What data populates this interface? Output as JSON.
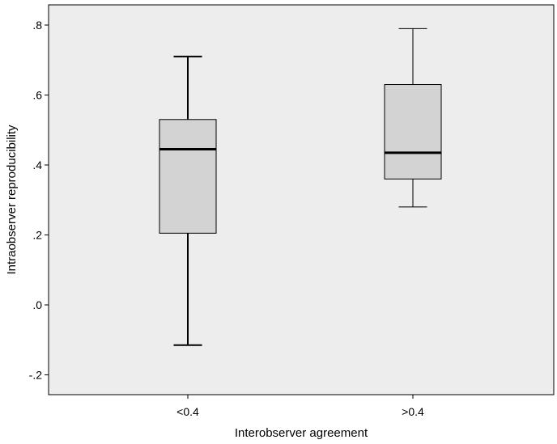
{
  "chart_data": {
    "type": "boxplot",
    "xlabel": "Interobserver agreement",
    "ylabel": "Intraobserver reproducibility",
    "ylim": [
      -0.25,
      0.85
    ],
    "yticks": [
      -0.2,
      0.0,
      0.2,
      0.4,
      0.6,
      0.8
    ],
    "ytick_labels": [
      "-.2",
      ".0",
      ".2",
      ".4",
      ".6",
      ".8"
    ],
    "categories": [
      "<0.4",
      ">0.4"
    ],
    "boxes": [
      {
        "category": "<0.4",
        "min": -0.115,
        "q1": 0.205,
        "median": 0.445,
        "q3": 0.53,
        "max": 0.71
      },
      {
        "category": ">0.4",
        "min": 0.28,
        "q1": 0.36,
        "median": 0.435,
        "q3": 0.63,
        "max": 0.79
      }
    ],
    "grid": false,
    "colors": {
      "plot_background": "#ededed",
      "box_fill": "#d3d3d3",
      "line": "#000000"
    }
  }
}
